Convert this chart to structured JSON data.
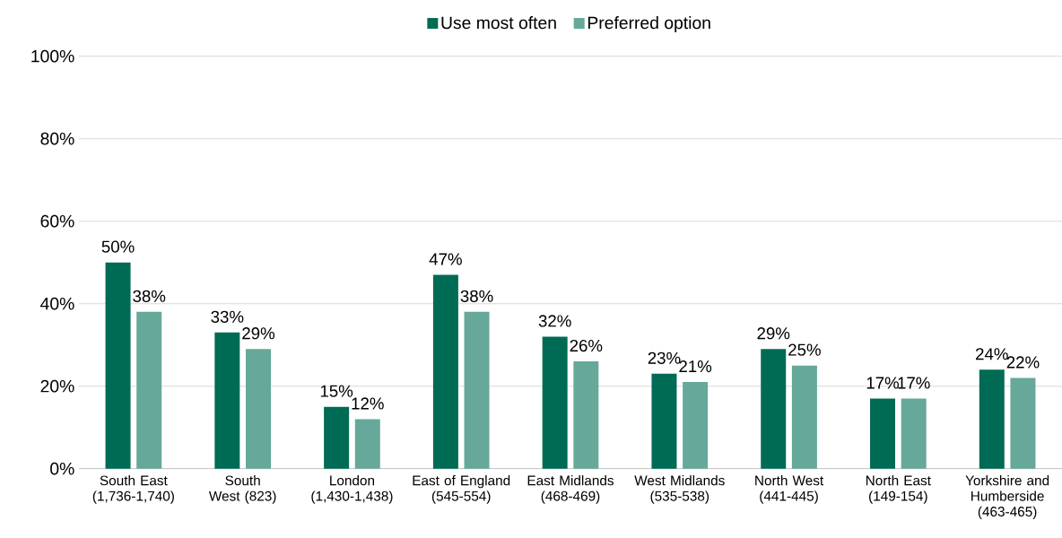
{
  "chart_data": {
    "type": "bar",
    "categories": [
      "South East (1,736-1,740)",
      "South West (823)",
      "London (1,430-1,438)",
      "East of England (545-554)",
      "East Midlands (468-469)",
      "West Midlands (535-538)",
      "North West (441-445)",
      "North East (149-154)",
      "Yorkshire and Humberside (463-465)"
    ],
    "series": [
      {
        "name": "Use most often",
        "color": "#006b54",
        "values": [
          50,
          33,
          15,
          47,
          32,
          23,
          29,
          17,
          24
        ],
        "value_labels": [
          "50%",
          "33%",
          "15%",
          "47%",
          "32%",
          "23%",
          "29%",
          "17%",
          "24%"
        ]
      },
      {
        "name": "Preferred option",
        "color": "#66a89a",
        "values": [
          38,
          29,
          12,
          38,
          26,
          21,
          25,
          17,
          22
        ],
        "value_labels": [
          "38%",
          "29%",
          "12%",
          "38%",
          "26%",
          "21%",
          "25%",
          "17%",
          "22%"
        ]
      }
    ],
    "ylim": [
      0,
      100
    ],
    "yticks": [
      {
        "value": 0,
        "label": "0%"
      },
      {
        "value": 20,
        "label": "20%"
      },
      {
        "value": 40,
        "label": "40%"
      },
      {
        "value": 60,
        "label": "60%"
      },
      {
        "value": 80,
        "label": "80%"
      },
      {
        "value": 100,
        "label": "100%"
      }
    ],
    "grid": "y",
    "legend": "top"
  }
}
